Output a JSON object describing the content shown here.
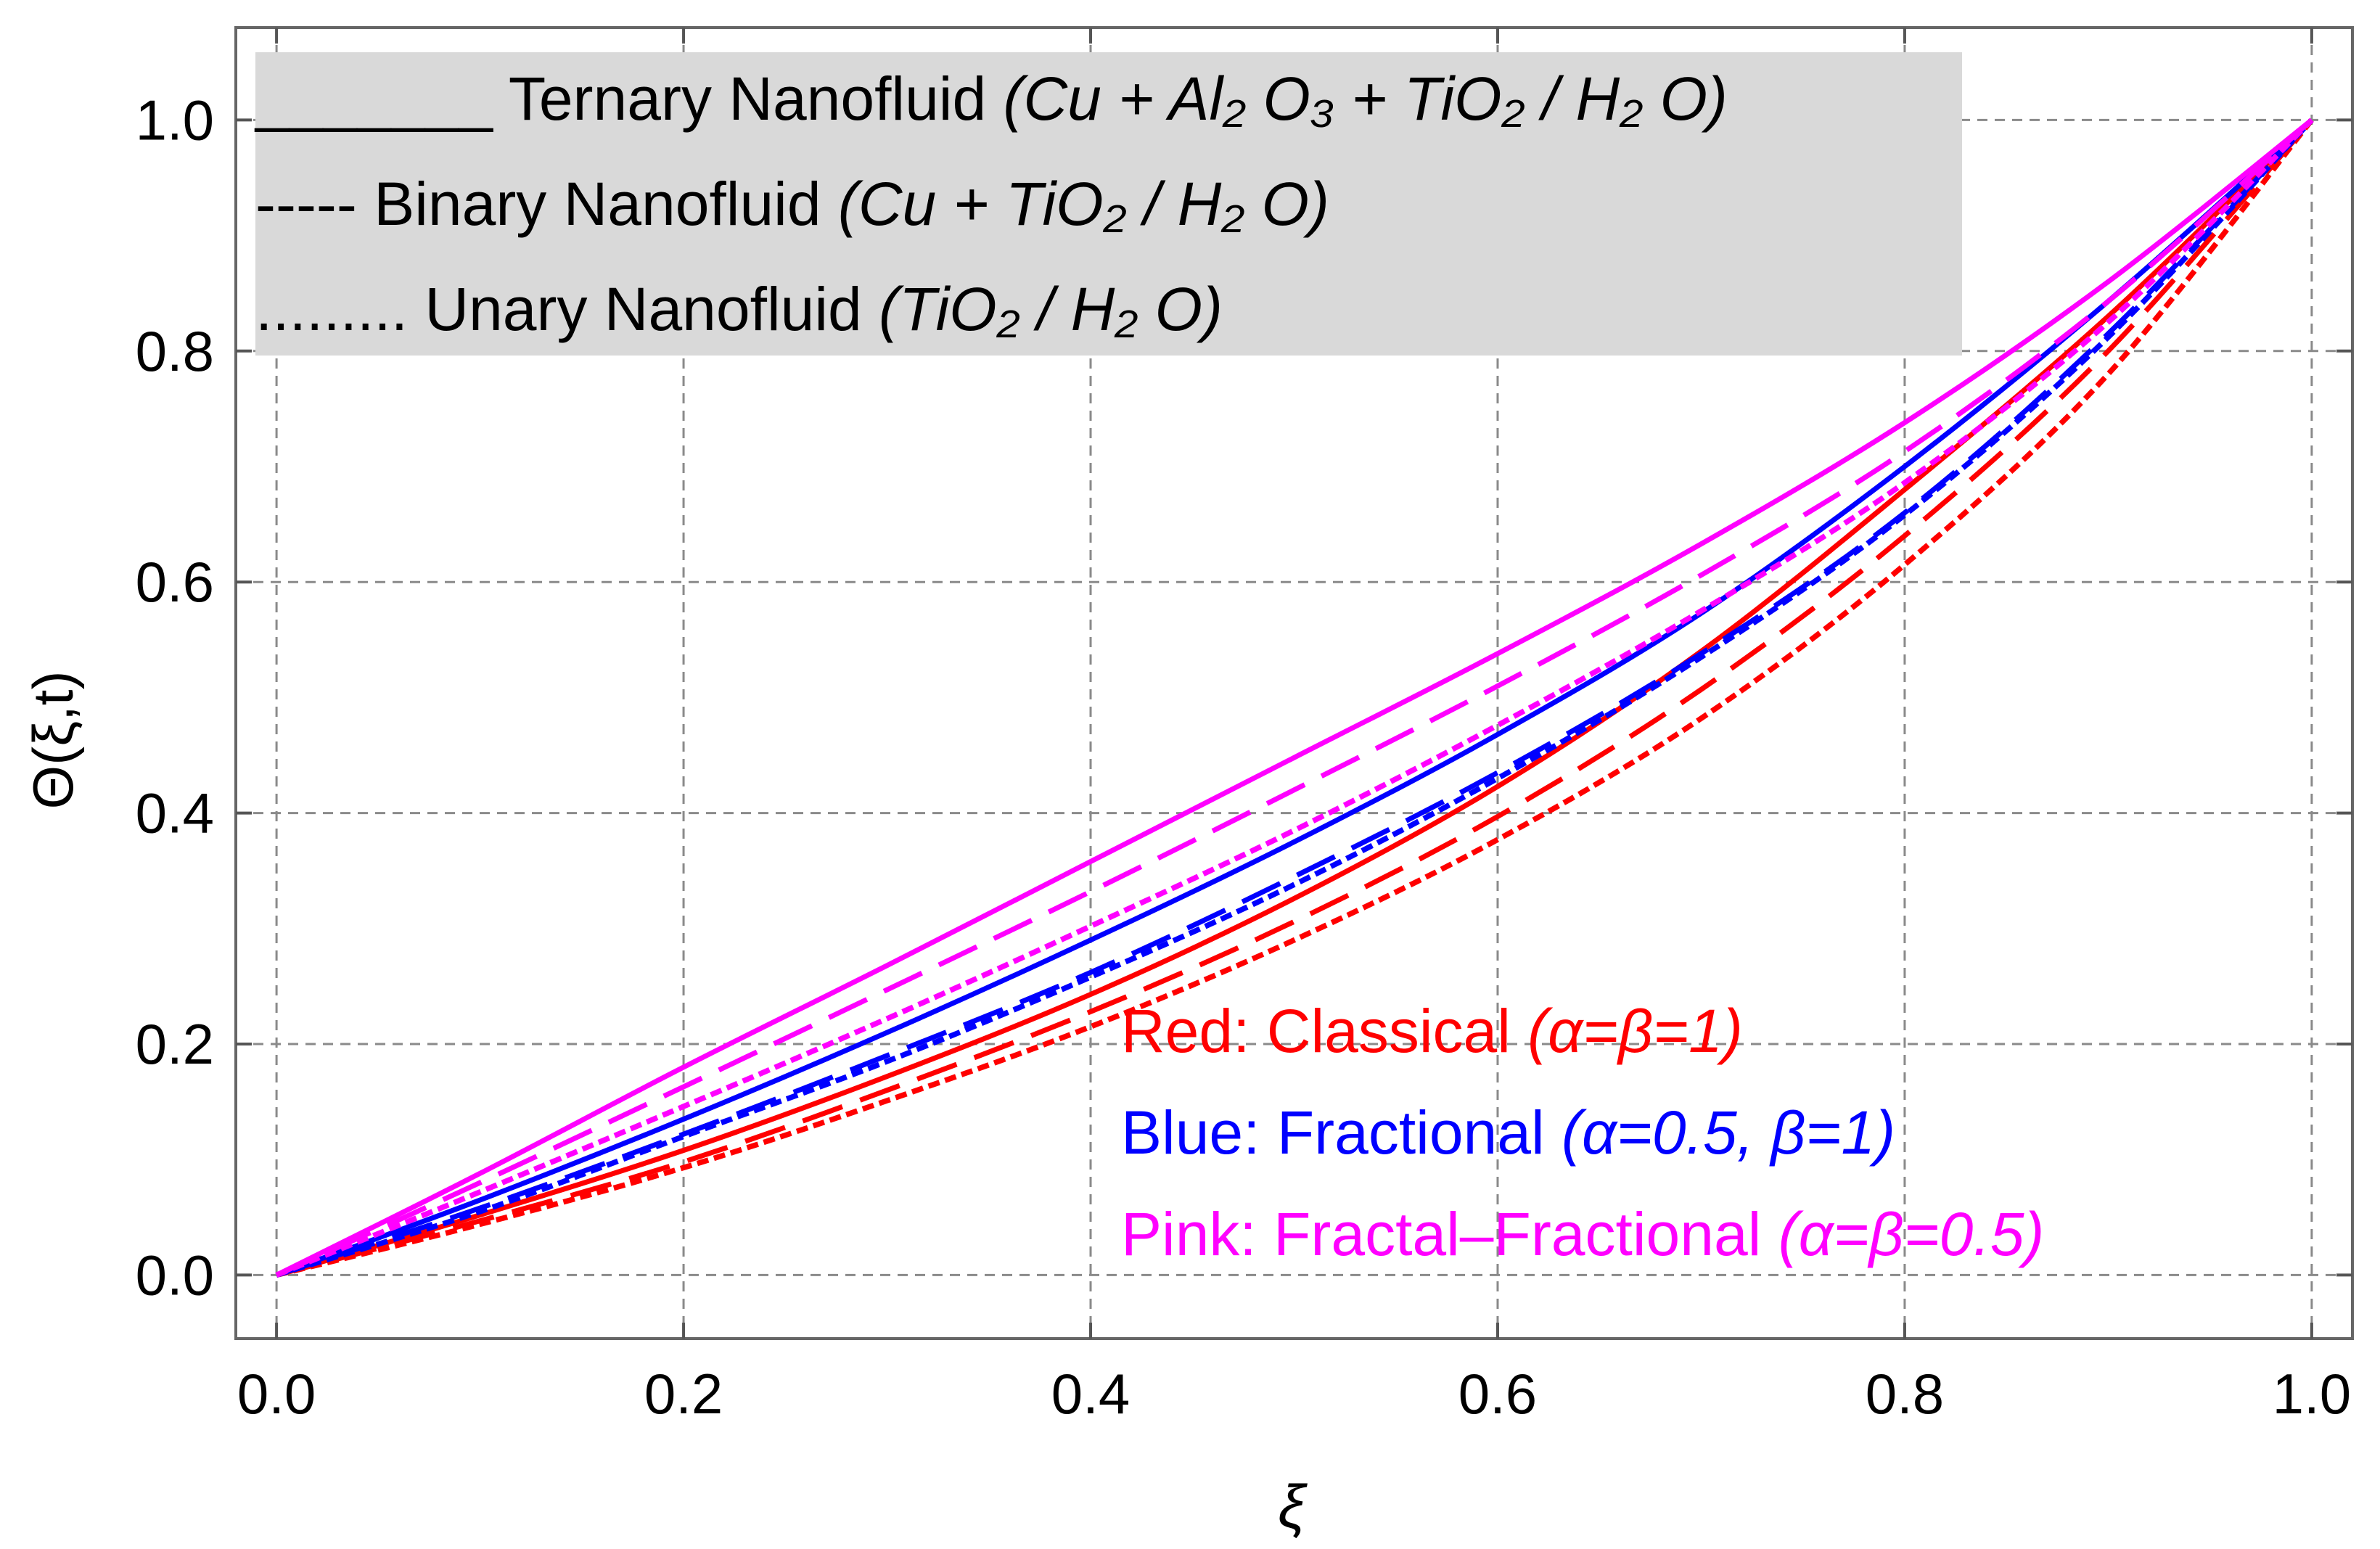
{
  "chart_data": {
    "type": "line",
    "xlabel": "ξ",
    "ylabel": "Θ(ξ,t)",
    "xlim": [
      -0.02,
      1.02
    ],
    "ylim": [
      -0.055,
      1.08
    ],
    "xticks": [
      0.0,
      0.2,
      0.4,
      0.6,
      0.8,
      1.0
    ],
    "yticks": [
      0.0,
      0.2,
      0.4,
      0.6,
      0.8,
      1.0
    ],
    "xtick_labels": [
      "0.0",
      "0.2",
      "0.4",
      "0.6",
      "0.8",
      "1.0"
    ],
    "ytick_labels": [
      "0.0",
      "0.2",
      "0.4",
      "0.6",
      "0.8",
      "1.0"
    ],
    "grid": true,
    "colors": {
      "red": "#ff0000",
      "blue": "#0000ff",
      "pink": "#ff00ff"
    },
    "x": [
      0.0,
      0.1,
      0.2,
      0.3,
      0.4,
      0.5,
      0.6,
      0.7,
      0.8,
      0.9,
      1.0
    ],
    "series": [
      {
        "name": "Red Ternary",
        "color": "red",
        "style": "solid",
        "values": [
          0.0,
          0.052,
          0.108,
          0.172,
          0.243,
          0.326,
          0.423,
          0.54,
          0.68,
          0.83,
          1.0
        ]
      },
      {
        "name": "Red Binary",
        "color": "red",
        "style": "dashed",
        "values": [
          0.0,
          0.047,
          0.098,
          0.16,
          0.228,
          0.306,
          0.397,
          0.507,
          0.64,
          0.8,
          1.0
        ]
      },
      {
        "name": "Red Unary",
        "color": "red",
        "style": "dotted",
        "values": [
          0.0,
          0.044,
          0.093,
          0.151,
          0.215,
          0.29,
          0.377,
          0.482,
          0.615,
          0.78,
          1.0
        ]
      },
      {
        "name": "Blue Ternary",
        "color": "blue",
        "style": "solid",
        "values": [
          0.0,
          0.065,
          0.135,
          0.21,
          0.29,
          0.375,
          0.468,
          0.573,
          0.7,
          0.843,
          1.0
        ]
      },
      {
        "name": "Blue Binary",
        "color": "blue",
        "style": "dashed",
        "values": [
          0.0,
          0.058,
          0.122,
          0.19,
          0.262,
          0.345,
          0.435,
          0.538,
          0.66,
          0.815,
          1.0
        ]
      },
      {
        "name": "Blue Unary",
        "color": "blue",
        "style": "dotted",
        "values": [
          0.0,
          0.055,
          0.12,
          0.185,
          0.258,
          0.338,
          0.43,
          0.535,
          0.658,
          0.812,
          1.0
        ]
      },
      {
        "name": "Pink Ternary",
        "color": "pink",
        "style": "solid",
        "values": [
          0.0,
          0.088,
          0.18,
          0.268,
          0.358,
          0.448,
          0.538,
          0.633,
          0.738,
          0.86,
          1.0
        ]
      },
      {
        "name": "Pink Binary",
        "color": "pink",
        "style": "dashed",
        "values": [
          0.0,
          0.08,
          0.163,
          0.247,
          0.332,
          0.42,
          0.51,
          0.606,
          0.713,
          0.843,
          1.0
        ]
      },
      {
        "name": "Pink Unary",
        "color": "pink",
        "style": "dotted",
        "values": [
          0.0,
          0.072,
          0.146,
          0.222,
          0.302,
          0.385,
          0.476,
          0.575,
          0.686,
          0.825,
          1.0
        ]
      }
    ],
    "legend_styles": {
      "placement": "top-left",
      "background": "#d9d9d9",
      "entries": [
        {
          "sample": "_______",
          "name": "Ternary Nanofluid",
          "formula": "(Cu + Al₂ O₃ + TiO₂ / H₂ O)"
        },
        {
          "sample": "-----",
          "name": "Binary Nanofluid",
          "formula": "(Cu + TiO₂ / H₂ O)"
        },
        {
          "sample": ".........",
          "name": "Unary Nanofluid",
          "formula": "(TiO₂ / H₂ O)"
        }
      ]
    },
    "legend_colors": {
      "placement": "bottom-right",
      "entries": [
        {
          "color": "red",
          "label": "Red:",
          "model": "Classical",
          "params": "(α=β=1)"
        },
        {
          "color": "blue",
          "label": "Blue:",
          "model": "Fractional",
          "params": "(α=0.5, β=1)"
        },
        {
          "color": "pink",
          "label": "Pink:",
          "model": "Fractal–Fractional",
          "params": "(α=β=0.5)"
        }
      ]
    }
  }
}
